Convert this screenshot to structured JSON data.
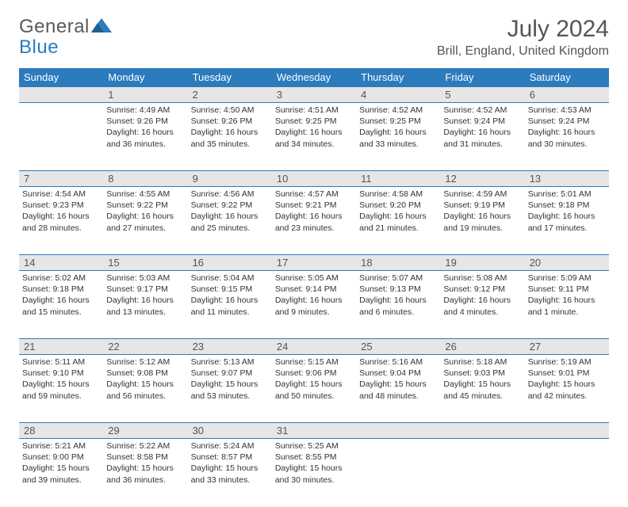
{
  "logo": {
    "general": "General",
    "blue": "Blue"
  },
  "title": "July 2024",
  "location": "Brill, England, United Kingdom",
  "colors": {
    "header_bg": "#2b7bbd",
    "header_text": "#ffffff",
    "daynum_bg": "#e6e6e6",
    "border": "#2b7bbd",
    "body_text": "#333333",
    "title_text": "#555555"
  },
  "weekdays": [
    "Sunday",
    "Monday",
    "Tuesday",
    "Wednesday",
    "Thursday",
    "Friday",
    "Saturday"
  ],
  "weeks": [
    {
      "nums": [
        "",
        "1",
        "2",
        "3",
        "4",
        "5",
        "6"
      ],
      "cells": [
        {
          "sunrise": "",
          "sunset": "",
          "daylight": ""
        },
        {
          "sunrise": "Sunrise: 4:49 AM",
          "sunset": "Sunset: 9:26 PM",
          "daylight": "Daylight: 16 hours and 36 minutes."
        },
        {
          "sunrise": "Sunrise: 4:50 AM",
          "sunset": "Sunset: 9:26 PM",
          "daylight": "Daylight: 16 hours and 35 minutes."
        },
        {
          "sunrise": "Sunrise: 4:51 AM",
          "sunset": "Sunset: 9:25 PM",
          "daylight": "Daylight: 16 hours and 34 minutes."
        },
        {
          "sunrise": "Sunrise: 4:52 AM",
          "sunset": "Sunset: 9:25 PM",
          "daylight": "Daylight: 16 hours and 33 minutes."
        },
        {
          "sunrise": "Sunrise: 4:52 AM",
          "sunset": "Sunset: 9:24 PM",
          "daylight": "Daylight: 16 hours and 31 minutes."
        },
        {
          "sunrise": "Sunrise: 4:53 AM",
          "sunset": "Sunset: 9:24 PM",
          "daylight": "Daylight: 16 hours and 30 minutes."
        }
      ]
    },
    {
      "nums": [
        "7",
        "8",
        "9",
        "10",
        "11",
        "12",
        "13"
      ],
      "cells": [
        {
          "sunrise": "Sunrise: 4:54 AM",
          "sunset": "Sunset: 9:23 PM",
          "daylight": "Daylight: 16 hours and 28 minutes."
        },
        {
          "sunrise": "Sunrise: 4:55 AM",
          "sunset": "Sunset: 9:22 PM",
          "daylight": "Daylight: 16 hours and 27 minutes."
        },
        {
          "sunrise": "Sunrise: 4:56 AM",
          "sunset": "Sunset: 9:22 PM",
          "daylight": "Daylight: 16 hours and 25 minutes."
        },
        {
          "sunrise": "Sunrise: 4:57 AM",
          "sunset": "Sunset: 9:21 PM",
          "daylight": "Daylight: 16 hours and 23 minutes."
        },
        {
          "sunrise": "Sunrise: 4:58 AM",
          "sunset": "Sunset: 9:20 PM",
          "daylight": "Daylight: 16 hours and 21 minutes."
        },
        {
          "sunrise": "Sunrise: 4:59 AM",
          "sunset": "Sunset: 9:19 PM",
          "daylight": "Daylight: 16 hours and 19 minutes."
        },
        {
          "sunrise": "Sunrise: 5:01 AM",
          "sunset": "Sunset: 9:18 PM",
          "daylight": "Daylight: 16 hours and 17 minutes."
        }
      ]
    },
    {
      "nums": [
        "14",
        "15",
        "16",
        "17",
        "18",
        "19",
        "20"
      ],
      "cells": [
        {
          "sunrise": "Sunrise: 5:02 AM",
          "sunset": "Sunset: 9:18 PM",
          "daylight": "Daylight: 16 hours and 15 minutes."
        },
        {
          "sunrise": "Sunrise: 5:03 AM",
          "sunset": "Sunset: 9:17 PM",
          "daylight": "Daylight: 16 hours and 13 minutes."
        },
        {
          "sunrise": "Sunrise: 5:04 AM",
          "sunset": "Sunset: 9:15 PM",
          "daylight": "Daylight: 16 hours and 11 minutes."
        },
        {
          "sunrise": "Sunrise: 5:05 AM",
          "sunset": "Sunset: 9:14 PM",
          "daylight": "Daylight: 16 hours and 9 minutes."
        },
        {
          "sunrise": "Sunrise: 5:07 AM",
          "sunset": "Sunset: 9:13 PM",
          "daylight": "Daylight: 16 hours and 6 minutes."
        },
        {
          "sunrise": "Sunrise: 5:08 AM",
          "sunset": "Sunset: 9:12 PM",
          "daylight": "Daylight: 16 hours and 4 minutes."
        },
        {
          "sunrise": "Sunrise: 5:09 AM",
          "sunset": "Sunset: 9:11 PM",
          "daylight": "Daylight: 16 hours and 1 minute."
        }
      ]
    },
    {
      "nums": [
        "21",
        "22",
        "23",
        "24",
        "25",
        "26",
        "27"
      ],
      "cells": [
        {
          "sunrise": "Sunrise: 5:11 AM",
          "sunset": "Sunset: 9:10 PM",
          "daylight": "Daylight: 15 hours and 59 minutes."
        },
        {
          "sunrise": "Sunrise: 5:12 AM",
          "sunset": "Sunset: 9:08 PM",
          "daylight": "Daylight: 15 hours and 56 minutes."
        },
        {
          "sunrise": "Sunrise: 5:13 AM",
          "sunset": "Sunset: 9:07 PM",
          "daylight": "Daylight: 15 hours and 53 minutes."
        },
        {
          "sunrise": "Sunrise: 5:15 AM",
          "sunset": "Sunset: 9:06 PM",
          "daylight": "Daylight: 15 hours and 50 minutes."
        },
        {
          "sunrise": "Sunrise: 5:16 AM",
          "sunset": "Sunset: 9:04 PM",
          "daylight": "Daylight: 15 hours and 48 minutes."
        },
        {
          "sunrise": "Sunrise: 5:18 AM",
          "sunset": "Sunset: 9:03 PM",
          "daylight": "Daylight: 15 hours and 45 minutes."
        },
        {
          "sunrise": "Sunrise: 5:19 AM",
          "sunset": "Sunset: 9:01 PM",
          "daylight": "Daylight: 15 hours and 42 minutes."
        }
      ]
    },
    {
      "nums": [
        "28",
        "29",
        "30",
        "31",
        "",
        "",
        ""
      ],
      "cells": [
        {
          "sunrise": "Sunrise: 5:21 AM",
          "sunset": "Sunset: 9:00 PM",
          "daylight": "Daylight: 15 hours and 39 minutes."
        },
        {
          "sunrise": "Sunrise: 5:22 AM",
          "sunset": "Sunset: 8:58 PM",
          "daylight": "Daylight: 15 hours and 36 minutes."
        },
        {
          "sunrise": "Sunrise: 5:24 AM",
          "sunset": "Sunset: 8:57 PM",
          "daylight": "Daylight: 15 hours and 33 minutes."
        },
        {
          "sunrise": "Sunrise: 5:25 AM",
          "sunset": "Sunset: 8:55 PM",
          "daylight": "Daylight: 15 hours and 30 minutes."
        },
        {
          "sunrise": "",
          "sunset": "",
          "daylight": ""
        },
        {
          "sunrise": "",
          "sunset": "",
          "daylight": ""
        },
        {
          "sunrise": "",
          "sunset": "",
          "daylight": ""
        }
      ]
    }
  ]
}
